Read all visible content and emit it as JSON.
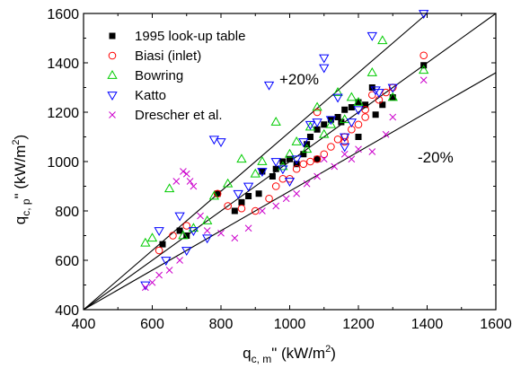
{
  "chart_data": {
    "type": "scatter",
    "title": "",
    "xlabel": {
      "main": "q",
      "sub": "c, m",
      "rest": "\" (kW/m",
      "sup": "2",
      "end": ")"
    },
    "ylabel": {
      "main": "q",
      "sub": "c, p",
      "rest": "\" (kW/m",
      "sup": "2",
      "end": ")"
    },
    "xlim": [
      400,
      1600
    ],
    "ylim": [
      400,
      1600
    ],
    "xticks": [
      400,
      600,
      800,
      1000,
      1200,
      1400,
      1600
    ],
    "yticks": [
      400,
      600,
      800,
      1000,
      1200,
      1400,
      1600
    ],
    "xtick_labels": [
      "400",
      "600",
      "800",
      "1000",
      "1200",
      "1400",
      "1600"
    ],
    "ytick_labels": [
      "400",
      "600",
      "800",
      "1000",
      "1200",
      "1400",
      "1600"
    ],
    "legend_position": "top-left",
    "reference_lines": [
      {
        "label": "",
        "slope": 1.0
      },
      {
        "label": "+20%",
        "slope": 1.2
      },
      {
        "label": "-20%",
        "slope": 0.8
      }
    ],
    "series": [
      {
        "name": "1995 look-up table",
        "marker": "square-filled",
        "color": "#000000",
        "points": [
          [
            630,
            665
          ],
          [
            680,
            720
          ],
          [
            700,
            700
          ],
          [
            790,
            870
          ],
          [
            840,
            800
          ],
          [
            860,
            835
          ],
          [
            880,
            860
          ],
          [
            910,
            870
          ],
          [
            920,
            960
          ],
          [
            950,
            940
          ],
          [
            960,
            970
          ],
          [
            980,
            1000
          ],
          [
            1000,
            1010
          ],
          [
            1020,
            990
          ],
          [
            1040,
            1030
          ],
          [
            1050,
            1070
          ],
          [
            1060,
            1100
          ],
          [
            1080,
            1130
          ],
          [
            1100,
            1150
          ],
          [
            1120,
            1170
          ],
          [
            1140,
            1180
          ],
          [
            1160,
            1210
          ],
          [
            1180,
            1220
          ],
          [
            1200,
            1240
          ],
          [
            1220,
            1230
          ],
          [
            1240,
            1300
          ],
          [
            1250,
            1190
          ],
          [
            1270,
            1230
          ],
          [
            1300,
            1260
          ],
          [
            1390,
            1390
          ],
          [
            1080,
            1010
          ],
          [
            1150,
            1160
          ],
          [
            1200,
            1100
          ]
        ]
      },
      {
        "name": "Biasi (inlet)",
        "marker": "circle-open",
        "color": "#ff0000",
        "points": [
          [
            620,
            640
          ],
          [
            660,
            700
          ],
          [
            700,
            740
          ],
          [
            790,
            870
          ],
          [
            820,
            820
          ],
          [
            860,
            810
          ],
          [
            900,
            800
          ],
          [
            940,
            850
          ],
          [
            960,
            900
          ],
          [
            980,
            930
          ],
          [
            1000,
            930
          ],
          [
            1020,
            970
          ],
          [
            1040,
            990
          ],
          [
            1060,
            1000
          ],
          [
            1080,
            1010
          ],
          [
            1100,
            1030
          ],
          [
            1120,
            1060
          ],
          [
            1140,
            1090
          ],
          [
            1160,
            1100
          ],
          [
            1180,
            1130
          ],
          [
            1200,
            1150
          ],
          [
            1220,
            1180
          ],
          [
            1240,
            1270
          ],
          [
            1260,
            1250
          ],
          [
            1280,
            1280
          ],
          [
            1300,
            1300
          ],
          [
            1390,
            1430
          ],
          [
            1080,
            1200
          ],
          [
            1160,
            1080
          ],
          [
            1220,
            1210
          ]
        ]
      },
      {
        "name": "Bowring",
        "marker": "triangle-up-open",
        "color": "#00cc00",
        "points": [
          [
            580,
            670
          ],
          [
            600,
            690
          ],
          [
            650,
            890
          ],
          [
            690,
            700
          ],
          [
            720,
            730
          ],
          [
            760,
            760
          ],
          [
            780,
            860
          ],
          [
            820,
            910
          ],
          [
            860,
            1010
          ],
          [
            900,
            950
          ],
          [
            920,
            1000
          ],
          [
            960,
            1160
          ],
          [
            1000,
            1030
          ],
          [
            1020,
            1080
          ],
          [
            1060,
            1140
          ],
          [
            1080,
            1220
          ],
          [
            1100,
            1110
          ],
          [
            1140,
            1280
          ],
          [
            1160,
            1170
          ],
          [
            1180,
            1260
          ],
          [
            1200,
            1240
          ],
          [
            1240,
            1360
          ],
          [
            1270,
            1490
          ],
          [
            1300,
            1260
          ],
          [
            1390,
            1370
          ],
          [
            1050,
            1050
          ],
          [
            1120,
            1150
          ],
          [
            980,
            980
          ]
        ]
      },
      {
        "name": "Katto",
        "marker": "triangle-down-open",
        "color": "#0000ff",
        "points": [
          [
            580,
            500
          ],
          [
            620,
            720
          ],
          [
            640,
            600
          ],
          [
            680,
            780
          ],
          [
            700,
            640
          ],
          [
            720,
            720
          ],
          [
            760,
            690
          ],
          [
            780,
            1090
          ],
          [
            800,
            1080
          ],
          [
            850,
            870
          ],
          [
            880,
            900
          ],
          [
            920,
            960
          ],
          [
            940,
            1310
          ],
          [
            960,
            1000
          ],
          [
            980,
            970
          ],
          [
            1000,
            920
          ],
          [
            1020,
            1010
          ],
          [
            1040,
            1080
          ],
          [
            1060,
            1150
          ],
          [
            1080,
            1160
          ],
          [
            1100,
            1380
          ],
          [
            1120,
            1170
          ],
          [
            1140,
            1260
          ],
          [
            1160,
            1060
          ],
          [
            1180,
            1160
          ],
          [
            1200,
            1210
          ],
          [
            1240,
            1510
          ],
          [
            1260,
            1280
          ],
          [
            1300,
            1300
          ],
          [
            1390,
            1600
          ],
          [
            1250,
            1290
          ],
          [
            1100,
            1420
          ],
          [
            1160,
            1100
          ]
        ]
      },
      {
        "name": "Drescher et al.",
        "marker": "x",
        "color": "#cc00cc",
        "points": [
          [
            580,
            490
          ],
          [
            600,
            510
          ],
          [
            620,
            540
          ],
          [
            650,
            560
          ],
          [
            680,
            600
          ],
          [
            690,
            960
          ],
          [
            700,
            950
          ],
          [
            710,
            920
          ],
          [
            740,
            780
          ],
          [
            760,
            720
          ],
          [
            800,
            710
          ],
          [
            840,
            690
          ],
          [
            880,
            730
          ],
          [
            920,
            800
          ],
          [
            960,
            820
          ],
          [
            990,
            850
          ],
          [
            1020,
            870
          ],
          [
            1050,
            910
          ],
          [
            1080,
            940
          ],
          [
            1100,
            1010
          ],
          [
            1130,
            980
          ],
          [
            1160,
            1030
          ],
          [
            1180,
            1010
          ],
          [
            1200,
            1050
          ],
          [
            1240,
            1040
          ],
          [
            1280,
            1110
          ],
          [
            1300,
            1180
          ],
          [
            1390,
            1330
          ],
          [
            670,
            920
          ],
          [
            720,
            900
          ]
        ]
      }
    ]
  }
}
